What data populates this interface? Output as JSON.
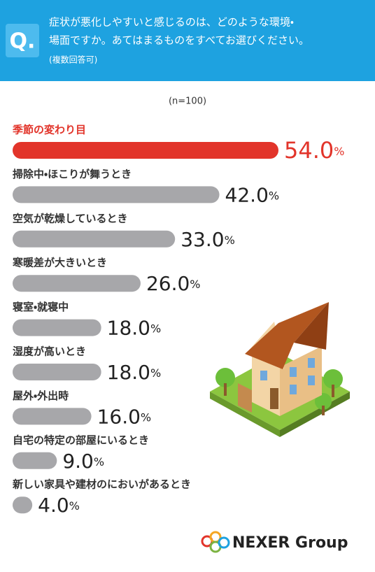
{
  "chart_data": {
    "type": "hbar",
    "badge": "Q.",
    "title": [
      "症状が悪化しやすいと感じるのは、どのような環境・",
      "場面ですか。あてはまるものをすべてお選びください。"
    ],
    "subtitle": "(複数回答可)",
    "note": "(n=100)",
    "categories": [
      "季節の変わり目",
      "掃除中・ほこりが舞うとき",
      "空気が乾燥しているとき",
      "寒暖差が大きいとき",
      "寝室・就寝中",
      "湿度が高いとき",
      "屋外・外出時",
      "自宅の特定の部屋にいるとき",
      "新しい家具や建材のにおいがあるとき"
    ],
    "values": [
      54,
      42,
      33,
      26,
      18,
      18,
      16,
      9,
      4
    ],
    "value_labels": [
      "54.0%",
      "42.0%",
      "33.0%",
      "26.0%",
      "18.0%",
      "18.0%",
      "16.0%",
      "9.0%",
      "4.0%"
    ],
    "colors": [
      "#e2342a",
      "#a7a7aa",
      "#a7a7aa",
      "#a7a7aa",
      "#a7a7aa",
      "#a7a7aa",
      "#a7a7aa",
      "#a7a7aa",
      "#a7a7aa"
    ],
    "logo": "NEXER Group"
  }
}
